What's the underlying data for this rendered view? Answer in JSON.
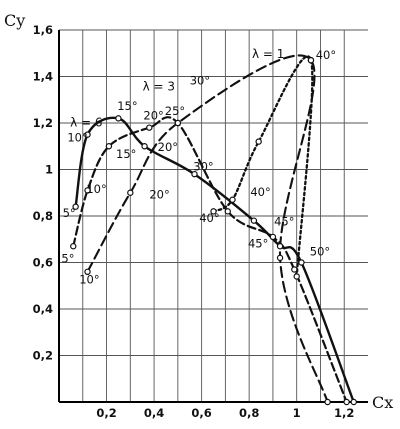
{
  "chart_data": {
    "type": "line",
    "title": "",
    "xlabel": "Cx",
    "ylabel": "Cy",
    "xlim": [
      0,
      1.3
    ],
    "ylim": [
      0,
      1.6
    ],
    "grid": true,
    "x_ticks": [
      {
        "value": 0.2,
        "label": "0,2"
      },
      {
        "value": 0.4,
        "label": "0,4"
      },
      {
        "value": 0.6,
        "label": "0,6"
      },
      {
        "value": 0.8,
        "label": "0,8"
      },
      {
        "value": 1.0,
        "label": "1"
      },
      {
        "value": 1.2,
        "label": "1,2"
      }
    ],
    "y_ticks": [
      {
        "value": 0.2,
        "label": "0,2"
      },
      {
        "value": 0.4,
        "label": "0,4"
      },
      {
        "value": 0.6,
        "label": "0,6"
      },
      {
        "value": 0.8,
        "label": "0,8"
      },
      {
        "value": 1.0,
        "label": "1"
      },
      {
        "value": 1.2,
        "label": "1,2"
      },
      {
        "value": 1.4,
        "label": "1,4"
      },
      {
        "value": 1.6,
        "label": "1,6"
      }
    ],
    "series": [
      {
        "name": "λ = 6",
        "style": "solid",
        "name_at": [
          0.115,
          1.185
        ],
        "points": [
          {
            "x": 0.07,
            "y": 0.84,
            "label": "5°"
          },
          {
            "x": 0.12,
            "y": 1.15,
            "label": "10°"
          },
          {
            "x": 0.25,
            "y": 1.22,
            "label": "15°"
          },
          {
            "x": 0.36,
            "y": 1.1
          },
          {
            "x": 0.57,
            "y": 0.98,
            "label": "30°"
          },
          {
            "x": 0.82,
            "y": 0.78,
            "label": "40°"
          },
          {
            "x": 0.93,
            "y": 0.67,
            "label": "45°"
          },
          {
            "x": 1.02,
            "y": 0.6,
            "label": "50°"
          },
          {
            "x": 1.24,
            "y": 0.0
          }
        ]
      },
      {
        "name": "λ = 3",
        "style": "dashed",
        "name_at": [
          0.42,
          1.34
        ],
        "points": [
          {
            "x": 0.06,
            "y": 0.67,
            "label": "5°"
          },
          {
            "x": 0.12,
            "y": 0.91,
            "label": "10°"
          },
          {
            "x": 0.21,
            "y": 1.1,
            "label": "15°"
          },
          {
            "x": 0.38,
            "y": 1.18,
            "label": "20°"
          },
          {
            "x": 0.5,
            "y": 1.2,
            "label": "25°"
          },
          {
            "x": 0.71,
            "y": 0.82,
            "label": "40°"
          },
          {
            "x": 0.9,
            "y": 0.71,
            "label": "45°"
          },
          {
            "x": 0.99,
            "y": 0.57
          },
          {
            "x": 1.21,
            "y": 0.0
          }
        ]
      },
      {
        "name": "λ = 1",
        "style": "long-dashed",
        "name_at": [
          0.88,
          1.48
        ],
        "points": [
          {
            "x": 0.12,
            "y": 0.56,
            "label": "10°"
          },
          {
            "x": 0.3,
            "y": 0.9,
            "label": "20°"
          },
          {
            "x": 0.5,
            "y": 1.2
          },
          {
            "x": 1.06,
            "y": 1.47,
            "label": "40°"
          },
          {
            "x": 0.93,
            "y": 0.62
          },
          {
            "x": 1.13,
            "y": 0.0
          }
        ]
      },
      {
        "name": "",
        "style": "dotted",
        "points": [
          {
            "x": 0.65,
            "y": 0.82
          },
          {
            "x": 0.73,
            "y": 0.87
          },
          {
            "x": 0.84,
            "y": 1.12
          },
          {
            "x": 1.06,
            "y": 1.47
          },
          {
            "x": 1.0,
            "y": 0.54
          }
        ]
      }
    ],
    "annotations": [
      {
        "text": "5°",
        "at": [
          0.015,
          0.795
        ]
      },
      {
        "text": "10°",
        "at": [
          0.035,
          1.12
        ]
      },
      {
        "text": "15°",
        "at": [
          0.245,
          1.255
        ]
      },
      {
        "text": "5°",
        "at": [
          0.01,
          0.6
        ]
      },
      {
        "text": "10°",
        "at": [
          0.115,
          0.9
        ]
      },
      {
        "text": "15°",
        "at": [
          0.24,
          1.05
        ]
      },
      {
        "text": "20°",
        "at": [
          0.355,
          1.215
        ]
      },
      {
        "text": "25°",
        "at": [
          0.445,
          1.235
        ]
      },
      {
        "text": "20°",
        "at": [
          0.415,
          1.08
        ]
      },
      {
        "text": "30°",
        "at": [
          0.565,
          0.995
        ]
      },
      {
        "text": "40°",
        "at": [
          0.59,
          0.775
        ]
      },
      {
        "text": "40°",
        "at": [
          0.805,
          0.885
        ]
      },
      {
        "text": "45°",
        "at": [
          0.905,
          0.76
        ]
      },
      {
        "text": "45°",
        "at": [
          0.795,
          0.665
        ]
      },
      {
        "text": "50°",
        "at": [
          1.055,
          0.63
        ]
      },
      {
        "text": "10°",
        "at": [
          0.085,
          0.51
        ]
      },
      {
        "text": "20°",
        "at": [
          0.38,
          0.875
        ]
      },
      {
        "text": "30°",
        "at": [
          0.55,
          1.365
        ]
      },
      {
        "text": "40°",
        "at": [
          1.08,
          1.475
        ]
      }
    ]
  }
}
